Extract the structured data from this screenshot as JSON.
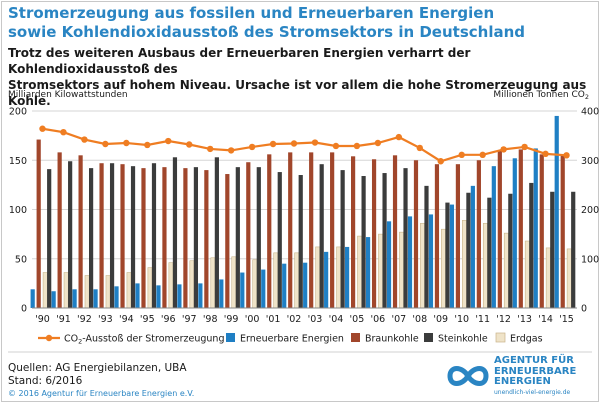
{
  "header": {
    "title_line1": "Stromerzeugung aus fossilen und Erneuerbaren Energien",
    "title_line2": "sowie Kohlendioxidausstoß des Stromsektors in Deutschland",
    "subtitle_line1": "Trotz des weiteren Ausbaus der Erneuerbaren Energien verharrt der Kohlendioxidausstoß des",
    "subtitle_line2": "Stromsektors auf hohem Niveau. Ursache ist vor allem die hohe Stromerzeugung aus Kohle."
  },
  "footer": {
    "sources": "Quellen: AG Energiebilanzen, UBA",
    "status": "Stand: 6/2016",
    "copyright": "© 2016 Agentur für Erneuerbare Energien e.V."
  },
  "logo": {
    "line1": "AGENTUR FÜR",
    "line2": "ERNEUERBARE",
    "line3": "ENERGIEN",
    "url": "unendlich-viel-energie.de"
  },
  "colors": {
    "accent": "#2a85c3",
    "erneuerbare": "#1f7fc4",
    "braunkohle": "#a1462b",
    "steinkohle": "#3b3c3c",
    "erdgas": "#efe3c8",
    "co2": "#ef7d22"
  },
  "chart_data": {
    "type": "bar",
    "ylabel_left": "Milliarden Kilowattstunden",
    "ylabel_right_prefix": "Millionen Tonnen CO",
    "ylabel_right_sub": "2",
    "ylim_left": [
      0,
      200
    ],
    "ylim_right": [
      0,
      400
    ],
    "yticks_left": [
      "0",
      "50",
      "100",
      "150",
      "200"
    ],
    "yticks_right": [
      "0",
      "100",
      "200",
      "300",
      "400"
    ],
    "grid": true,
    "categories": [
      "'90",
      "'91",
      "'92",
      "'93",
      "'94",
      "'95",
      "'96",
      "'97",
      "'98",
      "'99",
      "'00",
      "'01",
      "'02",
      "'03",
      "'04",
      "'05",
      "'06",
      "'07",
      "'08",
      "'09",
      "'10",
      "'11",
      "'12",
      "'13",
      "'14",
      "'15"
    ],
    "series": [
      {
        "name": "Erneuerbare Energien",
        "kind": "bar",
        "axis": "left",
        "values": [
          19,
          17,
          19,
          19,
          22,
          25,
          23,
          24,
          25,
          29,
          36,
          39,
          45,
          46,
          57,
          62,
          72,
          88,
          93,
          95,
          105,
          124,
          144,
          152,
          162,
          195
        ]
      },
      {
        "name": "Braunkohle",
        "kind": "bar",
        "axis": "left",
        "values": [
          171,
          158,
          155,
          147,
          146,
          142,
          143,
          142,
          140,
          136,
          148,
          156,
          158,
          158,
          158,
          154,
          151,
          155,
          150,
          146,
          146,
          150,
          160,
          161,
          156,
          155
        ]
      },
      {
        "name": "Steinkohle",
        "kind": "bar",
        "axis": "left",
        "values": [
          141,
          149,
          142,
          147,
          144,
          147,
          153,
          143,
          153,
          143,
          143,
          138,
          135,
          146,
          140,
          134,
          137,
          142,
          124,
          107,
          117,
          112,
          116,
          127,
          118,
          118
        ]
      },
      {
        "name": "Erdgas",
        "kind": "bar",
        "axis": "left",
        "values": [
          36,
          36,
          33,
          33,
          36,
          41,
          46,
          48,
          51,
          52,
          49,
          56,
          56,
          62,
          62,
          73,
          75,
          77,
          86,
          80,
          89,
          86,
          76,
          68,
          61,
          60
        ]
      },
      {
        "name": "CO",
        "name_sub": "2",
        "name_rest": "-Ausstoß der Stromerzeugung",
        "kind": "line",
        "axis": "right",
        "values": [
          364,
          357,
          342,
          333,
          335,
          331,
          339,
          332,
          323,
          320,
          327,
          333,
          334,
          336,
          329,
          329,
          335,
          347,
          325,
          298,
          311,
          311,
          322,
          327,
          313,
          310
        ]
      }
    ]
  }
}
